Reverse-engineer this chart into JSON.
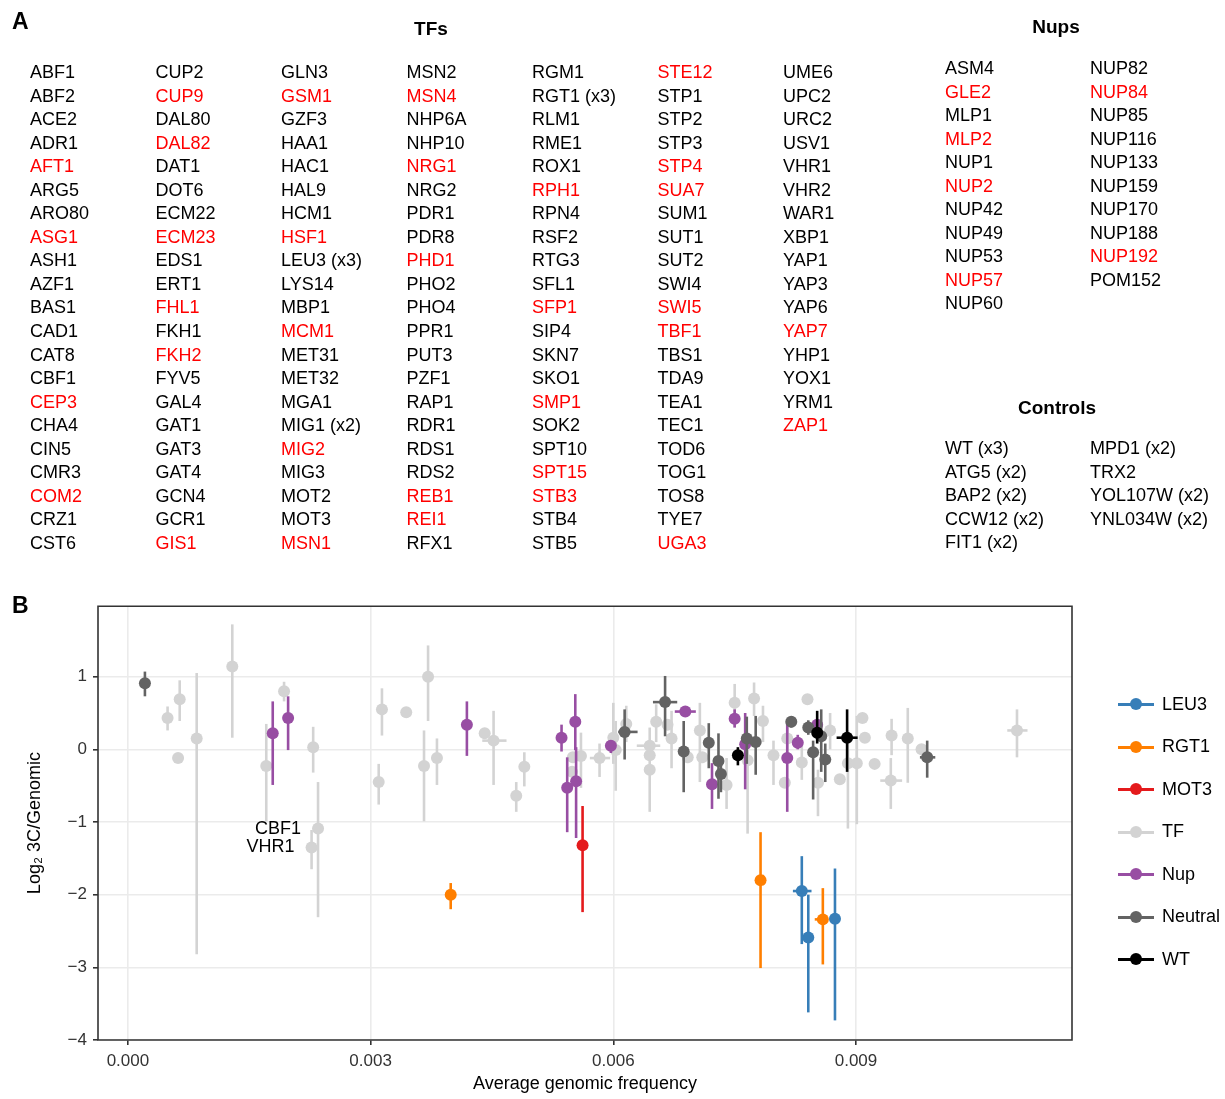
{
  "chart_data": [
    {
      "type": "other",
      "title": "A"
    },
    {
      "type": "other",
      "title": "TFs",
      "annotations": [
        "ABF1",
        "ABF2",
        "ACE2",
        "ADR1",
        "AFT1",
        "ARG5",
        "ARO80",
        "ASG1",
        "ASH1",
        "AZF1",
        "BAS1",
        "CAD1",
        "CAT8",
        "CBF1",
        "CEP3",
        "CHA4",
        "CIN5",
        "CMR3",
        "COM2",
        "CRZ1",
        "CST6",
        "CUP2",
        "CUP9",
        "DAL80",
        "DAL82",
        "DAT1",
        "DOT6",
        "ECM22",
        "ECM23",
        "EDS1",
        "ERT1",
        "FHL1",
        "FKH1",
        "FKH2",
        "FYV5",
        "GAL4",
        "GAT1",
        "GAT3",
        "GAT4",
        "GCN4",
        "GCR1",
        "GIS1",
        "GLN3",
        "GSM1",
        "GZF3",
        "HAA1",
        "HAC1",
        "HAL9",
        "HCM1",
        "HSF1",
        "LEU3 (x3)",
        "LYS14",
        "MBP1",
        "MCM1",
        "MET31",
        "MET32",
        "MGA1",
        "MIG1 (x2)",
        "MIG2",
        "MIG3",
        "MOT2",
        "MOT3",
        "MSN1",
        "MSN2",
        "MSN4",
        "NHP6A",
        "NHP10",
        "NRG1",
        "NRG2",
        "PDR1",
        "PDR8",
        "PHD1",
        "PHO2",
        "PHO4",
        "PPR1",
        "PUT3",
        "PZF1",
        "RAP1",
        "RDR1",
        "RDS1",
        "RDS2",
        "REB1",
        "REI1",
        "RFX1",
        "RGM1",
        "RGT1 (x3)",
        "RLM1",
        "RME1",
        "ROX1",
        "RPH1",
        "RPN4",
        "RSF2",
        "RTG3",
        "SFL1",
        "SFP1",
        "SIP4",
        "SKN7",
        "SKO1",
        "SMP1",
        "SOK2",
        "SPT10",
        "SPT15",
        "STB3",
        "STB4",
        "STB5",
        "STE12",
        "STP1",
        "STP2",
        "STP3",
        "STP4",
        "SUA7",
        "SUM1",
        "SUT1",
        "SUT2",
        "SWI4",
        "SWI5",
        "TBF1",
        "TBS1",
        "TDA9",
        "TEA1",
        "TEC1",
        "TOD6",
        "TOG1",
        "TOS8",
        "TYE7",
        "UGA3",
        "UME6",
        "UPC2",
        "URC2",
        "USV1",
        "VHR1",
        "VHR2",
        "WAR1",
        "XBP1",
        "YAP1",
        "YAP3",
        "YAP6",
        "YAP7",
        "YHP1",
        "YOX1",
        "YRM1",
        "ZAP1"
      ],
      "colors": [
        "#000000",
        "#000000",
        "#000000",
        "#000000",
        "#ff0000",
        "#000000",
        "#000000",
        "#ff0000",
        "#000000",
        "#000000",
        "#000000",
        "#000000",
        "#000000",
        "#000000",
        "#ff0000",
        "#000000",
        "#000000",
        "#000000",
        "#ff0000",
        "#000000",
        "#000000",
        "#000000",
        "#ff0000",
        "#000000",
        "#ff0000",
        "#000000",
        "#000000",
        "#000000",
        "#ff0000",
        "#000000",
        "#000000",
        "#ff0000",
        "#000000",
        "#ff0000",
        "#000000",
        "#000000",
        "#000000",
        "#000000",
        "#000000",
        "#000000",
        "#000000",
        "#ff0000",
        "#000000",
        "#ff0000",
        "#000000",
        "#000000",
        "#000000",
        "#000000",
        "#000000",
        "#ff0000",
        "#000000",
        "#000000",
        "#000000",
        "#ff0000",
        "#000000",
        "#000000",
        "#000000",
        "#000000",
        "#ff0000",
        "#000000",
        "#000000",
        "#000000",
        "#ff0000",
        "#000000",
        "#ff0000",
        "#000000",
        "#000000",
        "#ff0000",
        "#000000",
        "#000000",
        "#000000",
        "#ff0000",
        "#000000",
        "#000000",
        "#000000",
        "#000000",
        "#000000",
        "#000000",
        "#000000",
        "#000000",
        "#000000",
        "#ff0000",
        "#ff0000",
        "#000000",
        "#000000",
        "#000000",
        "#000000",
        "#000000",
        "#000000",
        "#ff0000",
        "#000000",
        "#000000",
        "#000000",
        "#000000",
        "#ff0000",
        "#000000",
        "#000000",
        "#000000",
        "#ff0000",
        "#000000",
        "#000000",
        "#ff0000",
        "#ff0000",
        "#000000",
        "#000000",
        "#ff0000",
        "#000000",
        "#000000",
        "#000000",
        "#ff0000",
        "#ff0000",
        "#000000",
        "#000000",
        "#000000",
        "#000000",
        "#ff0000",
        "#ff0000",
        "#000000",
        "#000000",
        "#000000",
        "#000000",
        "#000000",
        "#000000",
        "#000000",
        "#000000",
        "#ff0000",
        "#000000",
        "#000000",
        "#000000",
        "#000000",
        "#000000",
        "#000000",
        "#000000",
        "#000000",
        "#000000",
        "#000000",
        "#000000",
        "#ff0000",
        "#000000",
        "#000000",
        "#000000",
        "#ff0000"
      ]
    },
    {
      "type": "other",
      "title": "Nups",
      "annotations": [
        "ASM4",
        "GLE2",
        "MLP1",
        "MLP2",
        "NUP1",
        "NUP2",
        "NUP42",
        "NUP49",
        "NUP53",
        "NUP57",
        "NUP60",
        "NUP82",
        "NUP84",
        "NUP85",
        "NUP116",
        "NUP133",
        "NUP159",
        "NUP170",
        "NUP188",
        "NUP192",
        "POM152"
      ],
      "colors": [
        "#000000",
        "#ff0000",
        "#000000",
        "#ff0000",
        "#000000",
        "#ff0000",
        "#000000",
        "#000000",
        "#000000",
        "#ff0000",
        "#000000",
        "#000000",
        "#ff0000",
        "#000000",
        "#000000",
        "#000000",
        "#000000",
        "#000000",
        "#000000",
        "#ff0000",
        "#000000"
      ]
    },
    {
      "type": "other",
      "title": "Controls",
      "annotations": [
        "WT (x3)",
        "ATG5 (x2)",
        "BAP2 (x2)",
        "CCW12 (x2)",
        "FIT1 (x2)",
        "MPD1 (x2)",
        "TRX2",
        "YOL107W (x2)",
        "YNL034W (x2)"
      ]
    },
    {
      "type": "scatter",
      "xlabel": "Average genomic frequency",
      "ylabel": "Log₂ 3C/Genomic",
      "marker": "circle",
      "grid": true,
      "legend": "right",
      "xlim": [
        -0.00037,
        0.01167
      ],
      "ylim": [
        -4,
        1.97
      ],
      "xticks": [
        {
          "value": 0,
          "label": "0.000"
        },
        {
          "value": 0.003,
          "label": "0.003"
        },
        {
          "value": 0.006,
          "label": "0.006"
        },
        {
          "value": 0.009,
          "label": "0.009"
        }
      ],
      "yticks": [
        {
          "value": -4,
          "label": "−4"
        },
        {
          "value": -3,
          "label": "−3"
        },
        {
          "value": -2,
          "label": "−2"
        },
        {
          "value": -1,
          "label": "−1"
        },
        0,
        1
      ],
      "annotations": [
        "B",
        {
          "text": "CBF1",
          "x": 0.00235,
          "y": -1.09
        },
        {
          "text": "VHR1",
          "x": 0.00227,
          "y": -1.35
        }
      ],
      "series": [
        {
          "name": "LEU3",
          "color": "#377eb8",
          "x": [
            0.00833,
            0.00841,
            0.00874
          ],
          "values": [
            -1.95,
            -2.59,
            -2.33
          ],
          "errors": [
            [
              -2.68,
              -1.47
            ],
            [
              -3.62,
              -2.0
            ],
            [
              -3.73,
              -1.64
            ]
          ],
          "xerrors": [
            [
              0.00822,
              0.00845
            ],
            null,
            null
          ]
        },
        {
          "name": "RGT1",
          "color": "#ff7f00",
          "x": [
            0.00399,
            0.00782,
            0.00859
          ],
          "values": [
            -2.0,
            -1.8,
            -2.34
          ],
          "errors": [
            [
              -2.2,
              -1.84
            ],
            [
              -3.01,
              -1.14
            ],
            [
              -2.96,
              -1.91
            ]
          ],
          "xerrors": [
            null,
            null,
            [
              0.00849,
              0.00865
            ]
          ]
        },
        {
          "name": "MOT3",
          "color": "#e41a1c",
          "x": [
            0.00562
          ],
          "values": [
            -1.32
          ],
          "errors": [
            [
              -2.24,
              -0.78
            ]
          ]
        },
        {
          "name": "TF",
          "color": "#d3d3d3",
          "x": [
            0.00049,
            0.00064,
            0.00062,
            0.00085,
            0.00129,
            0.00171,
            0.00193,
            0.00229,
            0.00235,
            0.00227,
            0.00314,
            0.0031,
            0.00344,
            0.00371,
            0.00366,
            0.00382,
            0.00441,
            0.00452,
            0.0049,
            0.0048,
            0.0055,
            0.0056,
            0.00549,
            0.00583,
            0.006,
            0.00603,
            0.00616,
            0.00645,
            0.00645,
            0.00645,
            0.00653,
            0.00667,
            0.00672,
            0.00692,
            0.00707,
            0.0071,
            0.0074,
            0.0075,
            0.00774,
            0.00785,
            0.00798,
            0.00812,
            0.00815,
            0.0084,
            0.00868,
            0.00853,
            0.0088,
            0.0089,
            0.00901,
            0.00908,
            0.00911,
            0.00923,
            0.00944,
            0.00964,
            0.00981,
            0.00943,
            0.01099,
            0.00766,
            0.00833
          ],
          "values": [
            0.43,
            0.69,
            -0.12,
            0.15,
            1.14,
            -0.23,
            0.8,
            0.03,
            -1.09,
            -1.35,
            0.55,
            -0.45,
            0.51,
            1.0,
            -0.23,
            -0.12,
            0.22,
            0.12,
            -0.24,
            -0.64,
            -0.11,
            -0.09,
            -0.31,
            -0.12,
            0.16,
            -0.01,
            0.35,
            0.05,
            -0.08,
            -0.28,
            0.38,
            0.34,
            0.15,
            -0.11,
            0.26,
            -0.11,
            -0.49,
            0.64,
            0.7,
            0.39,
            -0.08,
            -0.46,
            0.15,
            0.69,
            0.26,
            -0.46,
            -0.41,
            -0.19,
            -0.19,
            0.43,
            0.16,
            -0.2,
            0.19,
            0.15,
            0.0,
            -0.43,
            0.26,
            -0.15,
            -0.18
          ],
          "errors": [
            [
              0.26,
              0.59
            ],
            [
              0.39,
              0.95
            ],
            null,
            [
              -2.82,
              1.05
            ],
            [
              0.16,
              1.72
            ],
            [
              -0.99,
              0.35
            ],
            [
              0.66,
              0.93
            ],
            [
              -0.32,
              0.31
            ],
            [
              -2.31,
              -0.45
            ],
            [
              -1.65,
              -1.11
            ],
            [
              0.19,
              0.84
            ],
            [
              -0.76,
              -0.2
            ],
            null,
            [
              0.39,
              1.43
            ],
            [
              -0.99,
              0.26
            ],
            [
              -0.49,
              0.15
            ],
            null,
            [
              -0.49,
              0.53
            ],
            [
              -0.51,
              -0.04
            ],
            [
              -0.86,
              -0.45
            ],
            null,
            [
              -0.53,
              0.23
            ],
            null,
            [
              -0.38,
              0.08
            ],
            [
              -0.2,
              0.64
            ],
            [
              -0.57,
              0.39
            ],
            [
              0.1,
              0.6
            ],
            null,
            null,
            [
              -0.86,
              0.3
            ],
            [
              0.1,
              0.62
            ],
            null,
            [
              -0.26,
              0.53
            ],
            null,
            [
              -0.45,
              0.64
            ],
            null,
            [
              -0.82,
              -0.12
            ],
            [
              0.3,
              0.9
            ],
            [
              0.46,
              0.92
            ],
            [
              0.1,
              0.6
            ],
            [
              -0.49,
              0.12
            ],
            null,
            [
              -0.1,
              0.35
            ],
            null,
            [
              0.0,
              0.5
            ],
            [
              -0.92,
              -0.28
            ],
            null,
            [
              -1.09,
              0.26
            ],
            [
              -1.03,
              0.46
            ],
            null,
            null,
            null,
            [
              -0.08,
              0.42
            ],
            [
              -0.46,
              0.57
            ],
            null,
            [
              -0.82,
              -0.12
            ],
            [
              -0.11,
              0.55
            ],
            [
              -1.16,
              -0.01
            ],
            [
              -0.42,
              0.12
            ]
          ],
          "xerrors": [
            null,
            null,
            null,
            null,
            null,
            null,
            null,
            null,
            null,
            null,
            null,
            null,
            null,
            null,
            null,
            null,
            null,
            [
              0.00438,
              0.00468
            ],
            null,
            null,
            null,
            null,
            null,
            [
              0.00571,
              0.00596
            ],
            null,
            null,
            null,
            [
              0.00629,
              0.00658
            ],
            null,
            null,
            null,
            null,
            null,
            null,
            null,
            null,
            null,
            null,
            null,
            null,
            null,
            null,
            null,
            null,
            null,
            null,
            null,
            null,
            null,
            null,
            null,
            null,
            null,
            null,
            null,
            [
              0.0093,
              0.00957
            ],
            [
              0.01087,
              0.01112
            ],
            null,
            null
          ]
        },
        {
          "name": "Nup",
          "color": "#984ea3",
          "x": [
            0.00179,
            0.00198,
            0.00419,
            0.00536,
            0.00553,
            0.00543,
            0.00554,
            0.00597,
            0.00689,
            0.00722,
            0.0075,
            0.00763,
            0.00815,
            0.00828,
            0.00852
          ],
          "values": [
            0.22,
            0.43,
            0.34,
            0.16,
            0.38,
            -0.53,
            -0.44,
            0.05,
            0.52,
            -0.48,
            0.42,
            0.07,
            -0.12,
            0.09,
            0.34
          ],
          "errors": [
            [
              -0.49,
              0.66
            ],
            [
              -0.01,
              0.73
            ],
            [
              -0.09,
              0.66
            ],
            [
              -0.03,
              0.34
            ],
            [
              -0.01,
              0.76
            ],
            [
              -1.14,
              -0.11
            ],
            [
              -1.22,
              0.03
            ],
            [
              -0.05,
              0.12
            ],
            null,
            [
              -0.82,
              -0.19
            ],
            [
              0.3,
              0.55
            ],
            [
              -0.55,
              0.5
            ],
            [
              -0.86,
              0.39
            ],
            [
              0,
              0.2
            ],
            null
          ],
          "xerrors": [
            null,
            null,
            null,
            null,
            null,
            null,
            null,
            null,
            [
              0.00676,
              0.00702
            ],
            null,
            null,
            null,
            null,
            null,
            null
          ]
        },
        {
          "name": "Neutral",
          "color": "#636363",
          "x": [
            0.00021,
            0.00664,
            0.00614,
            0.00687,
            0.00718,
            0.0073,
            0.00733,
            0.00765,
            0.00776,
            0.0082,
            0.00841,
            0.00857,
            0.00847,
            0.00862,
            0.00988
          ],
          "values": [
            0.91,
            0.65,
            0.24,
            -0.03,
            0.09,
            -0.16,
            -0.34,
            0.15,
            0.1,
            0.38,
            0.3,
            0.18,
            -0.04,
            -0.14,
            -0.11
          ],
          "errors": [
            [
              0.73,
              1.07
            ],
            [
              0.18,
              1.01
            ],
            [
              -0.14,
              0.55
            ],
            [
              -0.59,
              0.39
            ],
            [
              -0.26,
              0.36
            ],
            [
              -0.68,
              0.22
            ],
            [
              -0.59,
              -0.11
            ],
            [
              -0.2,
              0.45
            ],
            [
              -0.35,
              0.46
            ],
            [
              0.3,
              0.45
            ],
            [
              0.2,
              0.4
            ],
            [
              -0.31,
              0.55
            ],
            [
              -0.69,
              0.12
            ],
            [
              -0.45,
              0.08
            ],
            [
              -0.39,
              0.12
            ]
          ],
          "xerrors": [
            null,
            [
              0.00649,
              0.00679
            ],
            [
              0.00606,
              0.0063
            ],
            null,
            null,
            null,
            null,
            null,
            null,
            null,
            null,
            null,
            null,
            null,
            [
              0.00979,
              0.00998
            ]
          ]
        },
        {
          "name": "WT",
          "color": "#000000",
          "x": [
            0.00754,
            0.00852,
            0.00889
          ],
          "values": [
            -0.08,
            0.23,
            0.16
          ],
          "errors": [
            [
              -0.22,
              0.03
            ],
            [
              0.08,
              0.53
            ],
            [
              -0.31,
              0.55
            ]
          ],
          "xerrors": [
            null,
            null,
            [
              0.00876,
              0.00902
            ]
          ]
        }
      ]
    }
  ]
}
